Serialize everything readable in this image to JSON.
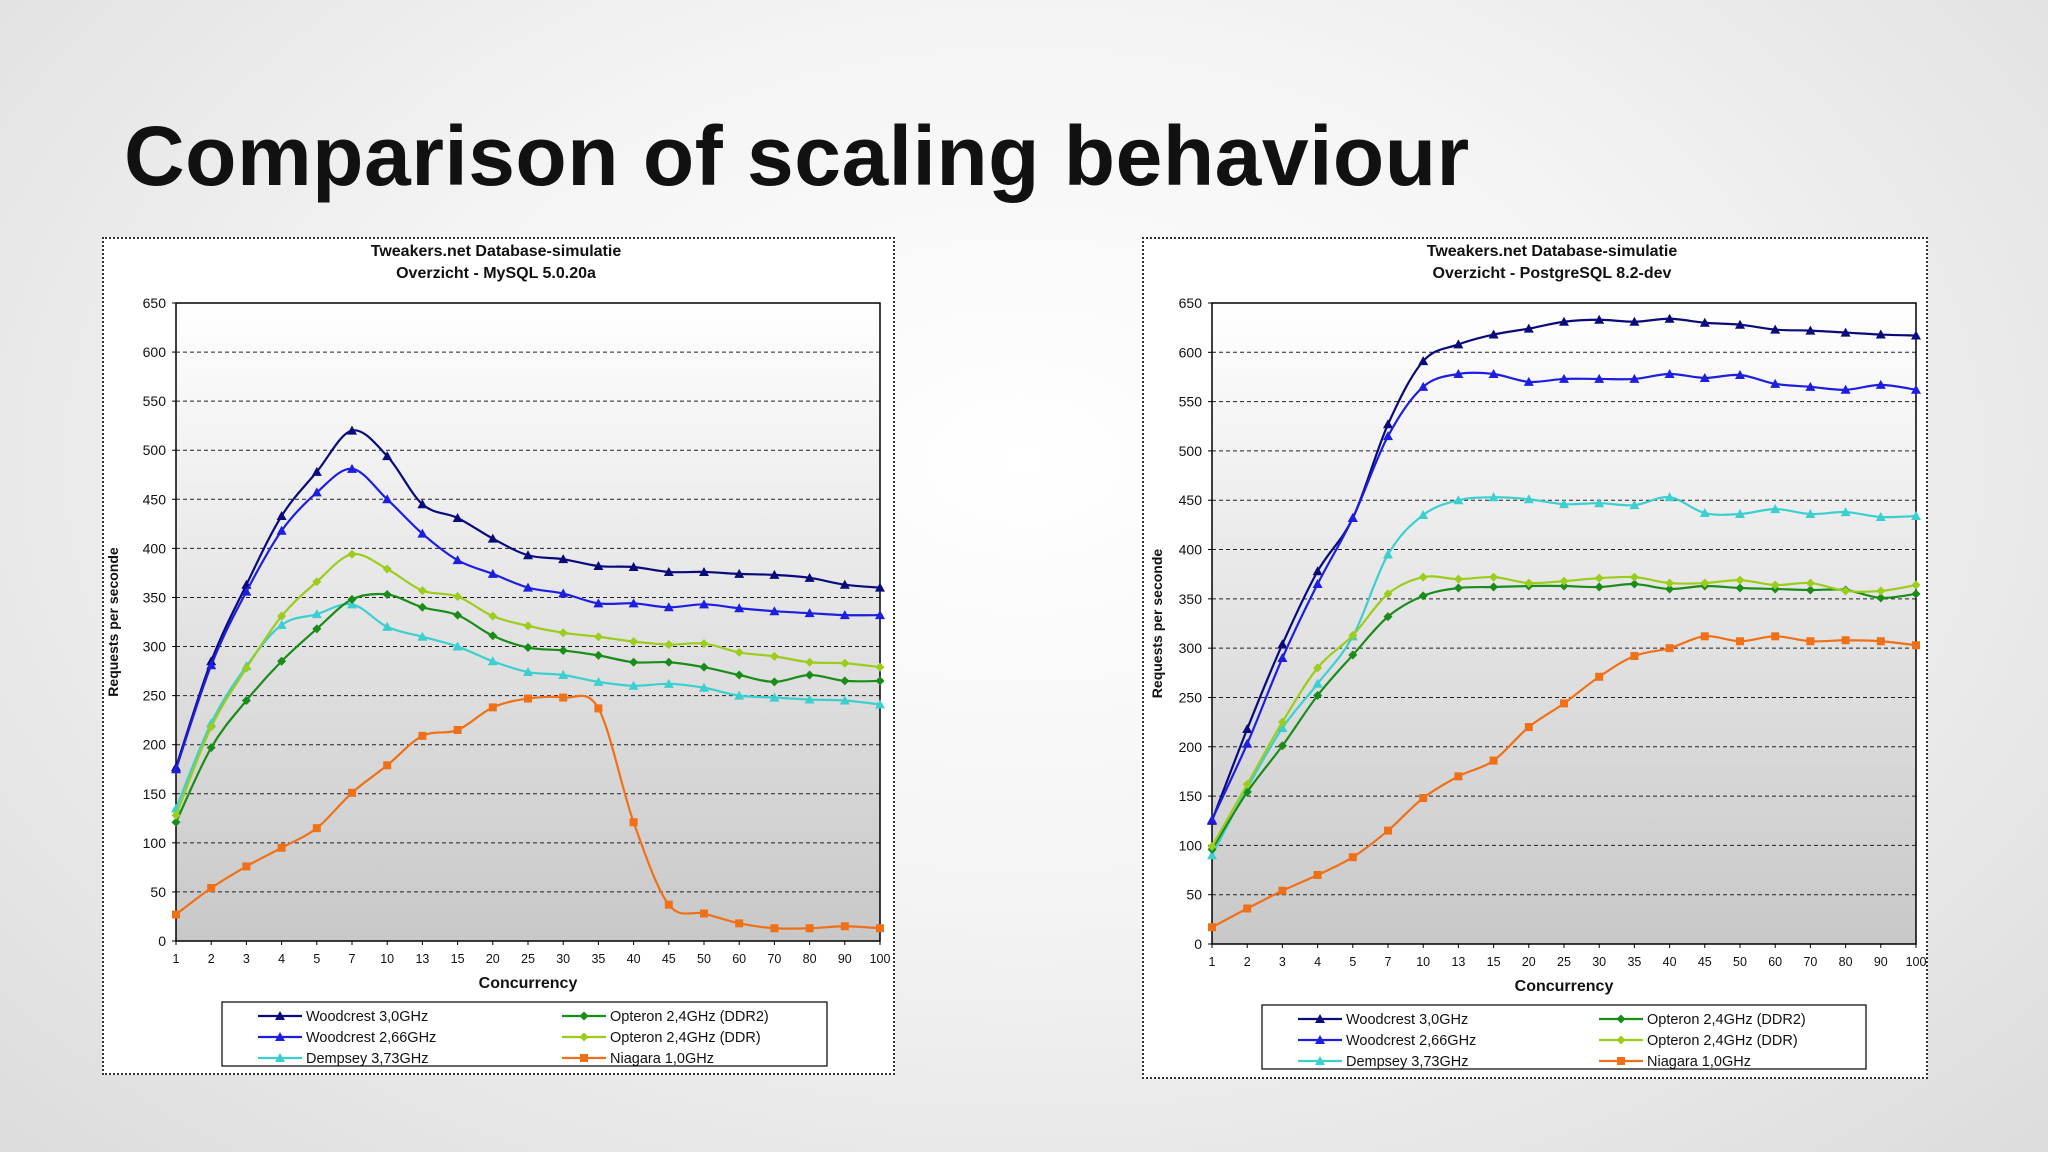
{
  "slide": {
    "title": "Comparison of scaling behaviour"
  },
  "colors": {
    "woodcrest30": "#0a0a7a",
    "woodcrest266": "#1e1ee0",
    "dempsey": "#3ccfd0",
    "opteron_ddr2": "#1a8c1a",
    "opteron_ddr": "#9ccc1c",
    "niagara": "#f07018"
  },
  "chart_data": [
    {
      "type": "line",
      "title": "Tweakers.net Database-simulatie",
      "subtitle": "Overzicht - MySQL 5.0.20a",
      "xlabel": "Concurrency",
      "ylabel": "Requests per seconde",
      "ylim": [
        0,
        650
      ],
      "yticks": [
        "0",
        "50",
        "100",
        "150",
        "200",
        "250",
        "300",
        "350",
        "400",
        "450",
        "500",
        "550",
        "600",
        "650"
      ],
      "categories": [
        "1",
        "2",
        "3",
        "4",
        "5",
        "7",
        "10",
        "13",
        "15",
        "20",
        "25",
        "30",
        "35",
        "40",
        "45",
        "50",
        "60",
        "70",
        "80",
        "90",
        "100"
      ],
      "grid": true,
      "legend_position": "bottom",
      "series": [
        {
          "name": "Woodcrest 3,0GHz",
          "color_key": "woodcrest30",
          "marker": "triangle",
          "values": [
            177,
            285,
            363,
            433,
            478,
            520,
            494,
            445,
            431,
            410,
            393,
            389,
            382,
            381,
            376,
            376,
            374,
            373,
            370,
            363,
            360
          ]
        },
        {
          "name": "Woodcrest 2,66GHz",
          "color_key": "woodcrest266",
          "marker": "triangle",
          "values": [
            175,
            281,
            356,
            418,
            457,
            481,
            450,
            415,
            388,
            374,
            360,
            354,
            344,
            344,
            340,
            343,
            339,
            336,
            334,
            332,
            332
          ]
        },
        {
          "name": "Dempsey 3,73GHz",
          "color_key": "dempsey",
          "marker": "triangle",
          "values": [
            135,
            222,
            280,
            322,
            333,
            343,
            320,
            310,
            300,
            285,
            274,
            271,
            264,
            260,
            262,
            258,
            250,
            248,
            246,
            245,
            241
          ]
        },
        {
          "name": "Opteron 2,4GHz (DDR2)",
          "color_key": "opteron_ddr2",
          "marker": "diamond",
          "values": [
            121,
            197,
            245,
            285,
            318,
            348,
            353,
            340,
            332,
            311,
            299,
            296,
            291,
            284,
            284,
            279,
            271,
            264,
            271,
            265,
            265
          ]
        },
        {
          "name": "Opteron 2,4GHz (DDR)",
          "color_key": "opteron_ddr",
          "marker": "diamond",
          "values": [
            128,
            218,
            278,
            331,
            366,
            394,
            379,
            357,
            351,
            331,
            321,
            314,
            310,
            305,
            302,
            303,
            294,
            290,
            284,
            283,
            279
          ]
        },
        {
          "name": "Niagara 1,0GHz",
          "color_key": "niagara",
          "marker": "square",
          "values": [
            27,
            54,
            76,
            95,
            115,
            151,
            179,
            209,
            215,
            238,
            247,
            248,
            237,
            121,
            37,
            28,
            18,
            13,
            13,
            15,
            13
          ]
        }
      ]
    },
    {
      "type": "line",
      "title": "Tweakers.net Database-simulatie",
      "subtitle": "Overzicht - PostgreSQL 8.2-dev",
      "xlabel": "Concurrency",
      "ylabel": "Requests per seconde",
      "ylim": [
        0,
        650
      ],
      "yticks": [
        "0",
        "50",
        "100",
        "150",
        "200",
        "250",
        "300",
        "350",
        "400",
        "450",
        "500",
        "550",
        "600",
        "650"
      ],
      "categories": [
        "1",
        "2",
        "3",
        "4",
        "5",
        "7",
        "10",
        "13",
        "15",
        "20",
        "25",
        "30",
        "35",
        "40",
        "45",
        "50",
        "60",
        "70",
        "80",
        "90",
        "100"
      ],
      "grid": true,
      "legend_position": "bottom",
      "series": [
        {
          "name": "Woodcrest 3,0GHz",
          "color_key": "woodcrest30",
          "marker": "triangle",
          "values": [
            125,
            218,
            304,
            378,
            432,
            527,
            591,
            608,
            618,
            624,
            631,
            633,
            631,
            634,
            630,
            628,
            623,
            622,
            620,
            618,
            617
          ]
        },
        {
          "name": "Woodcrest 2,66GHz",
          "color_key": "woodcrest266",
          "marker": "triangle",
          "values": [
            126,
            203,
            290,
            365,
            432,
            515,
            565,
            578,
            578,
            570,
            573,
            573,
            573,
            578,
            574,
            577,
            568,
            565,
            562,
            567,
            562
          ]
        },
        {
          "name": "Dempsey 3,73GHz",
          "color_key": "dempsey",
          "marker": "triangle",
          "values": [
            90,
            158,
            219,
            264,
            312,
            395,
            435,
            450,
            453,
            451,
            446,
            447,
            445,
            453,
            437,
            436,
            441,
            436,
            438,
            433,
            434
          ]
        },
        {
          "name": "Opteron 2,4GHz (DDR2)",
          "color_key": "opteron_ddr2",
          "marker": "diamond",
          "values": [
            96,
            154,
            201,
            252,
            293,
            332,
            353,
            361,
            362,
            363,
            363,
            362,
            365,
            360,
            363,
            361,
            360,
            359,
            359,
            351,
            355
          ]
        },
        {
          "name": "Opteron 2,4GHz (DDR)",
          "color_key": "opteron_ddr",
          "marker": "diamond",
          "values": [
            99,
            162,
            225,
            280,
            313,
            355,
            372,
            370,
            372,
            366,
            368,
            371,
            372,
            366,
            366,
            369,
            364,
            366,
            358,
            358,
            364
          ]
        },
        {
          "name": "Niagara 1,0GHz",
          "color_key": "niagara",
          "marker": "square",
          "values": [
            17,
            36,
            54,
            70,
            88,
            115,
            148,
            170,
            186,
            220,
            244,
            271,
            292,
            300,
            312,
            307,
            312,
            307,
            308,
            307,
            303
          ]
        }
      ]
    }
  ]
}
